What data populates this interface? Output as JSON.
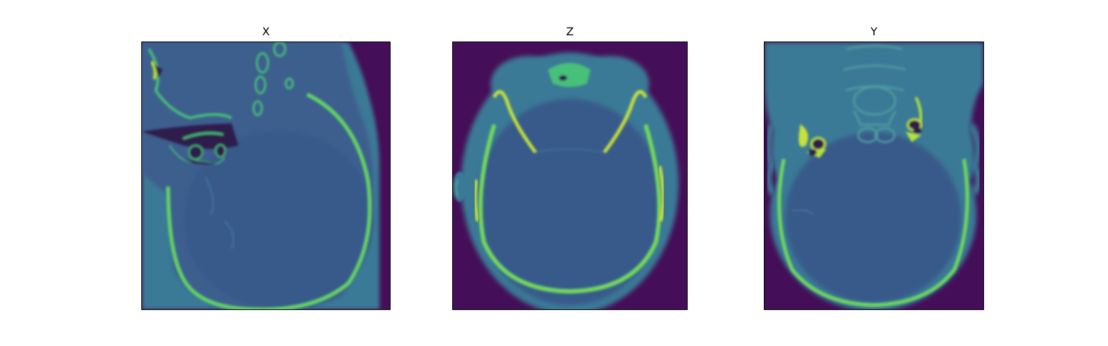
{
  "panels": [
    {
      "title": "X"
    },
    {
      "title": "Z"
    },
    {
      "title": "Y"
    }
  ],
  "colors": {
    "background_dark": "#450e58",
    "soft_tissue": "#3c5e8e",
    "brain": "#375a8a",
    "scalp": "#3a7a96",
    "bone": "#46c07a",
    "bone_bright": "#b7e13a",
    "air": "#2f1a4c"
  }
}
